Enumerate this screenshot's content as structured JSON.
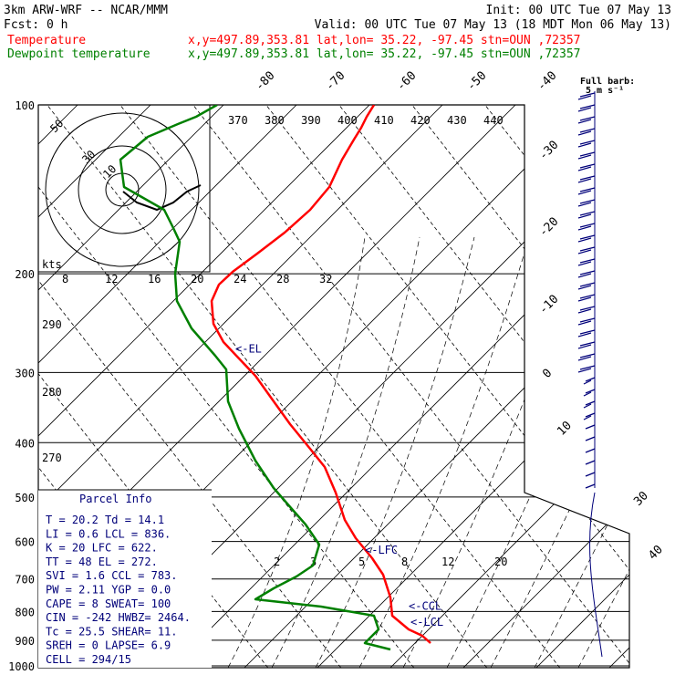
{
  "header": {
    "line1_left": "3km ARW-WRF -- NCAR/MMM",
    "line1_right": "Init: 00 UTC Tue 07 May 13",
    "line2_left": "Fcst:     0 h",
    "line2_right": "Valid: 00 UTC Tue 07 May 13 (18 MDT Mon 06 May 13)",
    "temp_label": "Temperature",
    "temp_info": "x,y=497.89,353.81    lat,lon= 35.22, -97.45   stn=OUN ,72357",
    "dew_label": "Dewpoint temperature",
    "dew_info": "x,y=497.89,353.81    lat,lon= 35.22, -97.45   stn=OUN ,72357",
    "barb_note1": "Full barb:",
    "barb_note2": "5 m s⁻¹"
  },
  "colors": {
    "temperature": "#ff0000",
    "dewpoint": "#008000",
    "annotation": "#00007a"
  },
  "chart_data": {
    "type": "line",
    "pressure_ticks": [
      100,
      200,
      300,
      400,
      500,
      600,
      700,
      800,
      900,
      1000
    ],
    "isotherm_labels": [
      "-80",
      "-70",
      "-60",
      "-50",
      "-40",
      "-30",
      "-20",
      "-10",
      "0",
      "10",
      "30",
      "40"
    ],
    "theta_labels": [
      "370",
      "380",
      "390",
      "400",
      "410",
      "420",
      "430",
      "440"
    ],
    "dry_adiabat_labels": [
      "290",
      "280",
      "270"
    ],
    "mixing_ratio_labels": [
      "2",
      "3",
      "5",
      "8",
      "12",
      "20"
    ],
    "hodo_axis_labels": [
      "8",
      "12",
      "16",
      "20",
      "24",
      "28",
      "32"
    ],
    "hodo_ring_labels": [
      "50",
      "30",
      "10"
    ],
    "hodo_units": "kts",
    "series": [
      {
        "name": "Temperature",
        "points": [
          [
            410,
            115
          ],
          [
            402,
            128
          ],
          [
            396,
            140
          ],
          [
            388,
            153
          ],
          [
            375,
            175
          ],
          [
            361,
            205
          ],
          [
            340,
            230
          ],
          [
            312,
            255
          ],
          [
            282,
            278
          ],
          [
            255,
            298
          ],
          [
            240,
            312
          ],
          [
            232,
            330
          ],
          [
            234,
            355
          ],
          [
            245,
            375
          ],
          [
            262,
            393
          ],
          [
            280,
            412
          ],
          [
            300,
            440
          ],
          [
            318,
            465
          ],
          [
            340,
            492
          ],
          [
            356,
            512
          ],
          [
            368,
            540
          ],
          [
            378,
            570
          ],
          [
            390,
            590
          ],
          [
            408,
            612
          ],
          [
            420,
            630
          ],
          [
            428,
            655
          ],
          [
            430,
            675
          ],
          [
            448,
            690
          ],
          [
            463,
            697
          ],
          [
            472,
            705
          ]
        ]
      },
      {
        "name": "Dewpoint temperature",
        "points": [
          [
            238,
            115
          ],
          [
            215,
            128
          ],
          [
            195,
            136
          ],
          [
            162,
            150
          ],
          [
            150,
            160
          ],
          [
            132,
            175
          ],
          [
            136,
            205
          ],
          [
            180,
            230
          ],
          [
            190,
            250
          ],
          [
            197,
            265
          ],
          [
            192,
            300
          ],
          [
            194,
            330
          ],
          [
            210,
            360
          ],
          [
            236,
            390
          ],
          [
            248,
            405
          ],
          [
            250,
            440
          ],
          [
            262,
            470
          ],
          [
            280,
            505
          ],
          [
            300,
            535
          ],
          [
            320,
            558
          ],
          [
            335,
            575
          ],
          [
            350,
            597
          ],
          [
            343,
            620
          ],
          [
            325,
            632
          ],
          [
            300,
            645
          ],
          [
            280,
            657
          ],
          [
            352,
            665
          ],
          [
            410,
            675
          ],
          [
            415,
            690
          ],
          [
            400,
            705
          ],
          [
            428,
            712
          ]
        ]
      }
    ],
    "hodograph_trace": [
      [
        135,
        210
      ],
      [
        150,
        222
      ],
      [
        172,
        230
      ],
      [
        190,
        222
      ],
      [
        205,
        210
      ],
      [
        220,
        203
      ]
    ],
    "annotations": [
      {
        "text": "<-EL",
        "pressure": 272
      },
      {
        "text": "<-LFC",
        "pressure": 622
      },
      {
        "text": "<-CCL",
        "pressure": 783
      },
      {
        "text": "<-LCL",
        "pressure": 836
      }
    ],
    "parcel_info": {
      "title": "Parcel Info",
      "rows": [
        "T   =    20.2  Td  =   14.1",
        "LI  =     0.6  LCL =   836.",
        "K   =     20  LFC =   622.",
        "TT  =     48  EL  =   272.",
        "SVI =    1.6  CCL =   783.",
        "PW  =   2.11  YGP =    0.0",
        "CAPE =     8  SWEAT=   100",
        "CIN  =  -242  HWBZ= 2464.",
        "Tc  =   25.5  SHEAR=   11.",
        "SREH =     0  LAPSE=   6.9",
        "CELL = 294/15"
      ]
    }
  }
}
